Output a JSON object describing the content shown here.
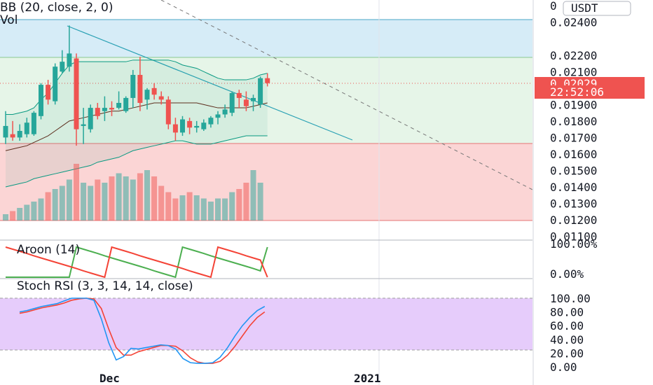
{
  "colors": {
    "bg": "#ffffff",
    "bull": "#26a69a",
    "bear": "#ef5350",
    "bb_band": "#089981",
    "bb_basis": "#5d2e1e",
    "trendline": "#2aa1b4",
    "dashed": "#777777",
    "zone_blue": "#d6ecf7",
    "zone_green": "#e6f5e8",
    "zone_red": "#fbd5d5",
    "stoch_fill": "#e6ccfb",
    "stoch_k": "#2196f3",
    "stoch_d": "#f44336",
    "aroon_up": "#f44336",
    "aroon_down": "#4caf50",
    "price_badge": "#ef5350"
  },
  "main": {
    "indicator_label": "BB (20, close, 2, 0)",
    "vol_label": "Vol",
    "currency_button": "USDT",
    "top_tick_partial": "0",
    "price_ticks": [
      "0.02400",
      "0.02200",
      "0.02100",
      "0.01900",
      "0.01800",
      "0.01700",
      "0.01600",
      "0.01500",
      "0.01400",
      "0.01300",
      "0.01200",
      "0.01100"
    ],
    "price_badge": "0.02029",
    "time_badge": "22:52:06"
  },
  "aroon": {
    "label": "Aroon (14)",
    "ticks": [
      "100.00%",
      "0.00%"
    ]
  },
  "stoch": {
    "label": "Stoch RSI (3, 3, 14, 14, close)",
    "ticks": [
      "100.00",
      "80.00",
      "60.00",
      "40.00",
      "20.00",
      "0.00"
    ]
  },
  "time_axis": [
    "Dec",
    "2021"
  ],
  "chart_data": {
    "type": "candlestick",
    "price_range": [
      0.011,
      0.0248
    ],
    "zones": [
      {
        "from": 0.0219,
        "to": 0.0244,
        "color": "blue"
      },
      {
        "from": 0.0166,
        "to": 0.0219,
        "color": "green"
      },
      {
        "from": 0.012,
        "to": 0.0166,
        "color": "red"
      }
    ],
    "candles": [
      {
        "o": 0.017,
        "h": 0.0186,
        "l": 0.0166,
        "c": 0.0177
      },
      {
        "o": 0.0172,
        "h": 0.018,
        "l": 0.0168,
        "c": 0.017
      },
      {
        "o": 0.017,
        "h": 0.0178,
        "l": 0.0168,
        "c": 0.0174
      },
      {
        "o": 0.0172,
        "h": 0.0182,
        "l": 0.017,
        "c": 0.0179
      },
      {
        "o": 0.0172,
        "h": 0.0186,
        "l": 0.0171,
        "c": 0.0185
      },
      {
        "o": 0.0183,
        "h": 0.0203,
        "l": 0.0181,
        "c": 0.0202
      },
      {
        "o": 0.0202,
        "h": 0.0205,
        "l": 0.019,
        "c": 0.0193
      },
      {
        "o": 0.0192,
        "h": 0.0215,
        "l": 0.019,
        "c": 0.0213
      },
      {
        "o": 0.021,
        "h": 0.0223,
        "l": 0.0209,
        "c": 0.0216
      },
      {
        "o": 0.0213,
        "h": 0.0238,
        "l": 0.021,
        "c": 0.0221
      },
      {
        "o": 0.0218,
        "h": 0.0221,
        "l": 0.0165,
        "c": 0.0175
      },
      {
        "o": 0.0177,
        "h": 0.0188,
        "l": 0.0166,
        "c": 0.0178
      },
      {
        "o": 0.0175,
        "h": 0.019,
        "l": 0.0173,
        "c": 0.0188
      },
      {
        "o": 0.0188,
        "h": 0.0191,
        "l": 0.0181,
        "c": 0.0183
      },
      {
        "o": 0.0186,
        "h": 0.0195,
        "l": 0.018,
        "c": 0.0188
      },
      {
        "o": 0.0188,
        "h": 0.0192,
        "l": 0.0183,
        "c": 0.0187
      },
      {
        "o": 0.0188,
        "h": 0.0198,
        "l": 0.0187,
        "c": 0.0191
      },
      {
        "o": 0.0186,
        "h": 0.0195,
        "l": 0.0185,
        "c": 0.0194
      },
      {
        "o": 0.0194,
        "h": 0.0211,
        "l": 0.0188,
        "c": 0.0208
      },
      {
        "o": 0.0208,
        "h": 0.0219,
        "l": 0.0186,
        "c": 0.0191
      },
      {
        "o": 0.0193,
        "h": 0.02,
        "l": 0.0187,
        "c": 0.0199
      },
      {
        "o": 0.02,
        "h": 0.0203,
        "l": 0.0193,
        "c": 0.0196
      },
      {
        "o": 0.0195,
        "h": 0.0198,
        "l": 0.019,
        "c": 0.0193
      },
      {
        "o": 0.0193,
        "h": 0.0195,
        "l": 0.0175,
        "c": 0.0178
      },
      {
        "o": 0.0178,
        "h": 0.0182,
        "l": 0.0168,
        "c": 0.0173
      },
      {
        "o": 0.0173,
        "h": 0.0183,
        "l": 0.0171,
        "c": 0.0181
      },
      {
        "o": 0.018,
        "h": 0.0182,
        "l": 0.0172,
        "c": 0.0176
      },
      {
        "o": 0.0176,
        "h": 0.018,
        "l": 0.0173,
        "c": 0.0177
      },
      {
        "o": 0.0175,
        "h": 0.0181,
        "l": 0.0174,
        "c": 0.0179
      },
      {
        "o": 0.0178,
        "h": 0.0183,
        "l": 0.0176,
        "c": 0.0182
      },
      {
        "o": 0.0182,
        "h": 0.0186,
        "l": 0.0178,
        "c": 0.0184
      },
      {
        "o": 0.0184,
        "h": 0.019,
        "l": 0.0182,
        "c": 0.0187
      },
      {
        "o": 0.0185,
        "h": 0.0198,
        "l": 0.0183,
        "c": 0.0197
      },
      {
        "o": 0.0197,
        "h": 0.0199,
        "l": 0.0188,
        "c": 0.0194
      },
      {
        "o": 0.0193,
        "h": 0.0198,
        "l": 0.0186,
        "c": 0.0189
      },
      {
        "o": 0.0192,
        "h": 0.0196,
        "l": 0.0186,
        "c": 0.0194
      },
      {
        "o": 0.019,
        "h": 0.0207,
        "l": 0.0188,
        "c": 0.0206
      },
      {
        "o": 0.0206,
        "h": 0.0209,
        "l": 0.0201,
        "c": 0.0203
      }
    ],
    "bb_upper": [
      0.0184,
      0.0184,
      0.0185,
      0.0186,
      0.0188,
      0.0193,
      0.0197,
      0.0203,
      0.0209,
      0.0214,
      0.0216,
      0.0216,
      0.0216,
      0.0216,
      0.0216,
      0.0216,
      0.0216,
      0.0216,
      0.0217,
      0.0217,
      0.0217,
      0.0217,
      0.0217,
      0.0217,
      0.0216,
      0.0214,
      0.0213,
      0.0212,
      0.021,
      0.0208,
      0.0206,
      0.0205,
      0.0205,
      0.0205,
      0.0205,
      0.0206,
      0.0208,
      0.0209
    ],
    "bb_basis": [
      0.0162,
      0.0163,
      0.0164,
      0.0165,
      0.0167,
      0.0169,
      0.0171,
      0.0174,
      0.0177,
      0.018,
      0.0181,
      0.0182,
      0.0183,
      0.0184,
      0.0185,
      0.0186,
      0.0186,
      0.0187,
      0.0188,
      0.0189,
      0.019,
      0.0191,
      0.0191,
      0.0191,
      0.0191,
      0.0191,
      0.0191,
      0.0191,
      0.019,
      0.0189,
      0.0188,
      0.0188,
      0.0188,
      0.0188,
      0.0188,
      0.0189,
      0.019,
      0.0191
    ],
    "bb_lower": [
      0.014,
      0.0141,
      0.0142,
      0.0143,
      0.0145,
      0.0146,
      0.0147,
      0.0148,
      0.0149,
      0.015,
      0.0151,
      0.0152,
      0.0153,
      0.0155,
      0.0156,
      0.0157,
      0.0158,
      0.016,
      0.0162,
      0.0163,
      0.0164,
      0.0165,
      0.0166,
      0.0167,
      0.0168,
      0.0168,
      0.0167,
      0.0166,
      0.0166,
      0.0166,
      0.0167,
      0.0168,
      0.0169,
      0.017,
      0.0171,
      0.0171,
      0.0171,
      0.0171
    ],
    "volume": [
      0.1,
      0.15,
      0.2,
      0.25,
      0.3,
      0.35,
      0.45,
      0.5,
      0.55,
      0.65,
      0.9,
      0.6,
      0.55,
      0.65,
      0.6,
      0.7,
      0.75,
      0.7,
      0.65,
      0.75,
      0.8,
      0.7,
      0.55,
      0.45,
      0.35,
      0.4,
      0.45,
      0.4,
      0.35,
      0.3,
      0.35,
      0.35,
      0.45,
      0.5,
      0.6,
      0.8,
      0.6,
      0.0
    ],
    "aroon_up": [
      100,
      93,
      86,
      79,
      71,
      64,
      57,
      50,
      43,
      36,
      29,
      21,
      14,
      7,
      0,
      100,
      93,
      86,
      79,
      71,
      64,
      57,
      50,
      43,
      36,
      29,
      21,
      14,
      7,
      0,
      100,
      93,
      86,
      79,
      71,
      64,
      57,
      0
    ],
    "aroon_down": [
      0,
      0,
      0,
      0,
      0,
      0,
      0,
      0,
      0,
      0,
      100,
      93,
      86,
      79,
      71,
      64,
      57,
      50,
      43,
      36,
      29,
      21,
      14,
      7,
      0,
      100,
      93,
      86,
      79,
      71,
      64,
      57,
      50,
      43,
      36,
      29,
      21,
      100
    ],
    "stoch_k": [
      80,
      82,
      85,
      88,
      90,
      92,
      96,
      100,
      100,
      100,
      97,
      70,
      35,
      10,
      15,
      27,
      26,
      28,
      30,
      32,
      31,
      26,
      12,
      6,
      5,
      5,
      6,
      14,
      28,
      45,
      60,
      72,
      82,
      88
    ],
    "stoch_d": [
      78,
      80,
      83,
      86,
      88,
      90,
      93,
      97,
      99,
      100,
      99,
      85,
      55,
      28,
      17,
      17,
      22,
      25,
      28,
      31,
      31,
      30,
      23,
      13,
      7,
      5,
      5,
      8,
      17,
      30,
      45,
      60,
      72,
      80
    ],
    "x_labels": [
      "Dec",
      "2021"
    ]
  }
}
